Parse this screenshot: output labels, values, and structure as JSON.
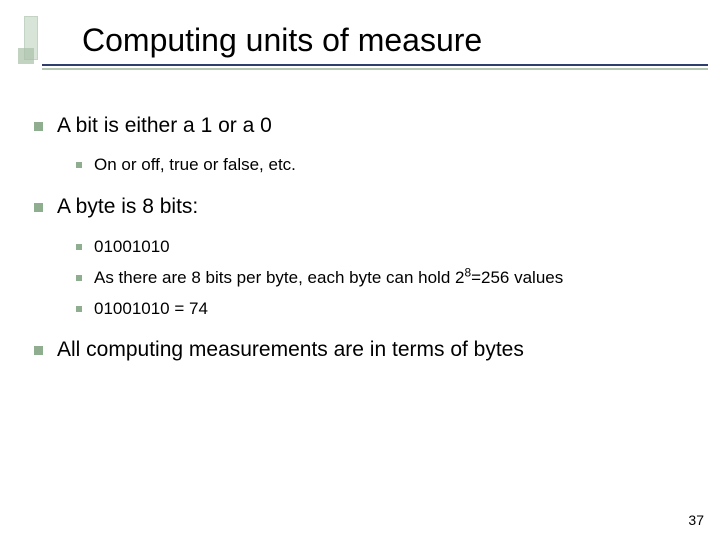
{
  "slide": {
    "title": "Computing units of measure",
    "title_fontsize": 32,
    "title_color": "#000000",
    "underline_dark": "#2f3e6e",
    "underline_light": "#b3c7b3",
    "accent_color": "#a8c0a8",
    "background_color": "#ffffff",
    "body": {
      "level1_fontsize": 21,
      "level2_fontsize": 17,
      "bullet_color": "#8fae8f",
      "text_color": "#000000",
      "items": [
        {
          "text": "A bit is either a 1 or a 0",
          "children": [
            {
              "text": "On or off, true or false, etc."
            }
          ]
        },
        {
          "text": "A byte is 8 bits:",
          "children": [
            {
              "text": "01001010"
            },
            {
              "text_pre": "As there are 8 bits per byte, each byte can hold 2",
              "sup": "8",
              "text_post": "=256 values"
            },
            {
              "text": "01001010 = 74"
            }
          ]
        },
        {
          "text": "All computing measurements are in terms of bytes",
          "children": []
        }
      ]
    },
    "slide_number": "37",
    "slide_number_fontsize": 14
  }
}
